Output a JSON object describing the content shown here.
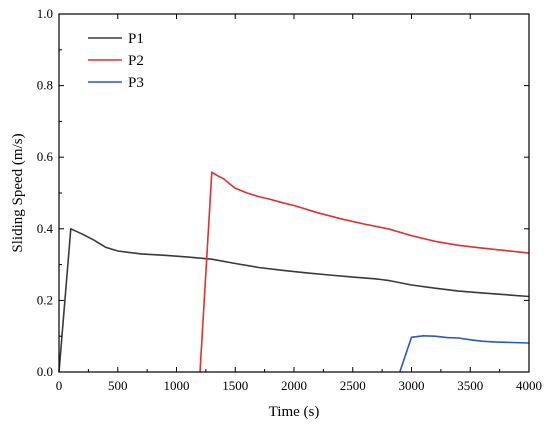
{
  "chart_data": {
    "type": "line",
    "title": "",
    "xlabel": "Time (s)",
    "ylabel": "Sliding Speed (m/s)",
    "xlim": [
      0,
      4000
    ],
    "ylim": [
      0.0,
      1.0
    ],
    "x_ticks": [
      "0",
      "500",
      "1000",
      "1500",
      "2000",
      "2500",
      "3000",
      "3500",
      "4000"
    ],
    "y_ticks": [
      "0.0",
      "0.2",
      "0.4",
      "0.6",
      "0.8",
      "1.0"
    ],
    "grid": false,
    "legend_position": "top-left",
    "series": [
      {
        "name": "P1",
        "color": "#3a3a3a",
        "points": [
          [
            0,
            0.0
          ],
          [
            100,
            0.4
          ],
          [
            200,
            0.385
          ],
          [
            300,
            0.368
          ],
          [
            400,
            0.348
          ],
          [
            500,
            0.338
          ],
          [
            700,
            0.33
          ],
          [
            900,
            0.326
          ],
          [
            1100,
            0.321
          ],
          [
            1300,
            0.315
          ],
          [
            1500,
            0.303
          ],
          [
            1700,
            0.292
          ],
          [
            1900,
            0.284
          ],
          [
            2100,
            0.277
          ],
          [
            2300,
            0.271
          ],
          [
            2500,
            0.265
          ],
          [
            2700,
            0.26
          ],
          [
            2800,
            0.256
          ],
          [
            3000,
            0.243
          ],
          [
            3200,
            0.234
          ],
          [
            3400,
            0.226
          ],
          [
            3600,
            0.221
          ],
          [
            3800,
            0.216
          ],
          [
            4000,
            0.211
          ]
        ]
      },
      {
        "name": "P2",
        "color": "#e03030",
        "points": [
          [
            1200,
            0.0
          ],
          [
            1300,
            0.558
          ],
          [
            1350,
            0.548
          ],
          [
            1400,
            0.54
          ],
          [
            1450,
            0.526
          ],
          [
            1500,
            0.513
          ],
          [
            1600,
            0.5
          ],
          [
            1700,
            0.49
          ],
          [
            1800,
            0.482
          ],
          [
            1900,
            0.473
          ],
          [
            2000,
            0.465
          ],
          [
            2200,
            0.445
          ],
          [
            2400,
            0.428
          ],
          [
            2600,
            0.413
          ],
          [
            2800,
            0.4
          ],
          [
            3000,
            0.381
          ],
          [
            3200,
            0.365
          ],
          [
            3400,
            0.354
          ],
          [
            3600,
            0.346
          ],
          [
            3800,
            0.339
          ],
          [
            4000,
            0.332
          ]
        ]
      },
      {
        "name": "P3",
        "color": "#2a55d0",
        "points": [
          [
            2900,
            0.0
          ],
          [
            3000,
            0.097
          ],
          [
            3100,
            0.101
          ],
          [
            3200,
            0.1
          ],
          [
            3300,
            0.096
          ],
          [
            3400,
            0.095
          ],
          [
            3500,
            0.09
          ],
          [
            3600,
            0.086
          ],
          [
            3700,
            0.084
          ],
          [
            3800,
            0.083
          ],
          [
            4000,
            0.081
          ]
        ]
      }
    ]
  }
}
